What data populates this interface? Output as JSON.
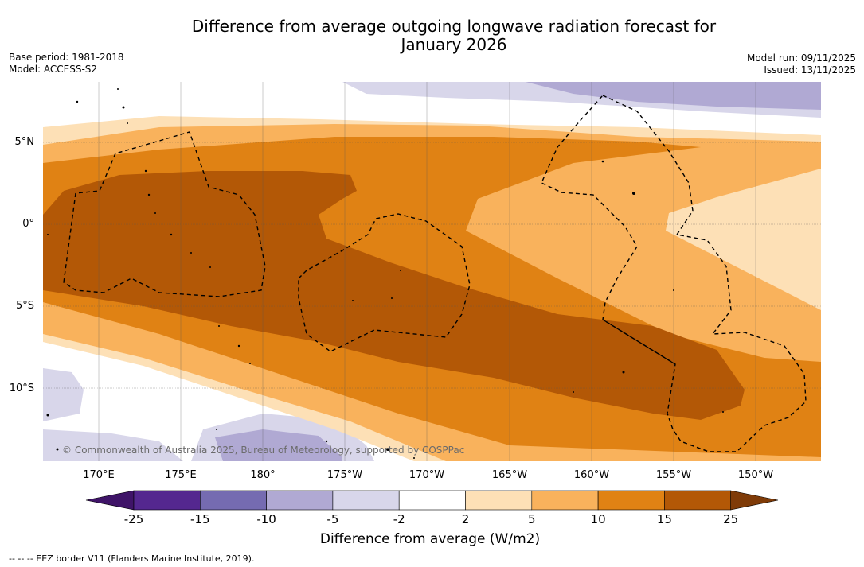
{
  "header": {
    "title_line1": "Difference from average outgoing longwave radiation forecast for",
    "title_line2": "January 2026",
    "base_period": "Base period: 1981-2018",
    "model": "Model: ACCESS-S2",
    "model_run": "Model run: 09/11/2025",
    "issued": "Issued: 13/11/2025"
  },
  "map": {
    "lat_labels": [
      "5°N",
      "0°",
      "5°S",
      "10°S"
    ],
    "lon_labels": [
      "170°E",
      "175°E",
      "180°",
      "175°W",
      "170°W",
      "165°W",
      "160°W",
      "155°W",
      "150°W"
    ],
    "copyright": "© Commonwealth of Australia 2025, Bureau of Meteorology, supported by COSPPac"
  },
  "colorbar": {
    "ticks": [
      "-25",
      "-15",
      "-10",
      "-5",
      "-2",
      "2",
      "5",
      "10",
      "15",
      "25"
    ],
    "colors": [
      "#54278f",
      "#756bb1",
      "#b0a9d3",
      "#d8d6ea",
      "#ffffff",
      "#fde0b6",
      "#f9b25c",
      "#e08214",
      "#b35806"
    ],
    "under_color": "#3f1468",
    "over_color": "#7f3b08",
    "label": "Difference from average (W/m2)"
  },
  "footnote": "--  --  -- EEZ border V11 (Flanders Marine Institute, 2019)."
}
